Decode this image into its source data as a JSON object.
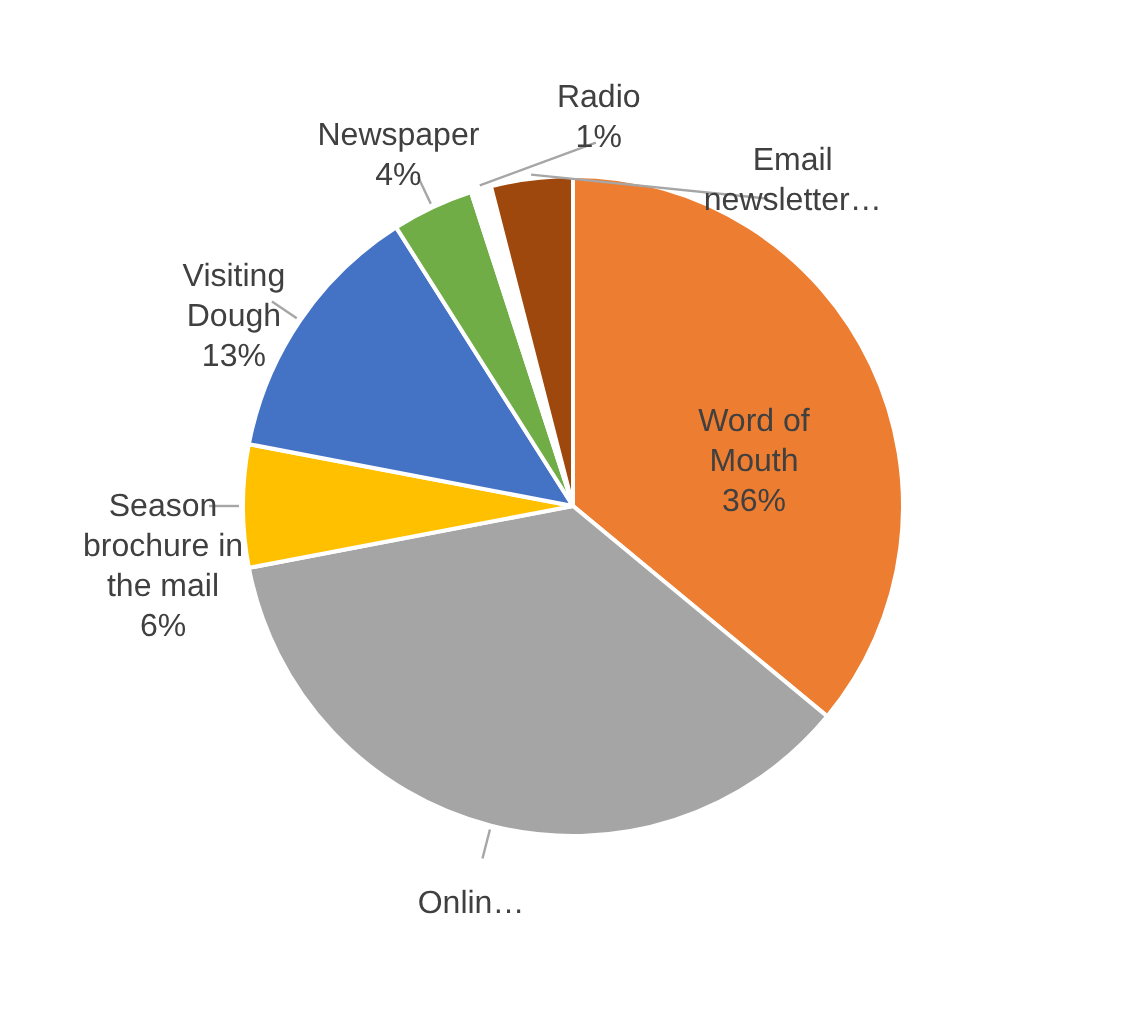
{
  "chart_data": {
    "type": "pie",
    "categories": [
      "Word of Mouth",
      "Onlin…",
      "Season brochure in the mail",
      "Visiting Dough",
      "Newspaper",
      "Radio",
      "Email newsletter…"
    ],
    "values": [
      36,
      36,
      6,
      13,
      4,
      1,
      4
    ],
    "colors": [
      "#ed7d31",
      "#a5a5a5",
      "#ffc000",
      "#4472c4",
      "#70ad47",
      "#ffffff",
      "#9e480e"
    ],
    "value_labels": [
      "36%",
      null,
      "6%",
      "13%",
      "4%",
      "1%",
      null
    ],
    "legend": false
  }
}
